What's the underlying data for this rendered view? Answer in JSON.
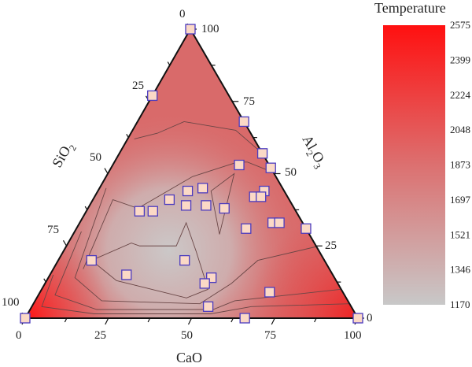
{
  "chart_data": {
    "type": "ternary-contour",
    "axes": {
      "bottom": {
        "label": "CaO",
        "ticks": [
          "0",
          "25",
          "50",
          "75",
          "100"
        ]
      },
      "left": {
        "label": "SiO2",
        "label_main": "SiO",
        "label_sub": "2",
        "ticks": [
          "0",
          "25",
          "50",
          "75",
          "100"
        ]
      },
      "right": {
        "label": "Al2O3",
        "label_parts": [
          "Al",
          "2",
          "O",
          "3"
        ],
        "ticks": [
          "0",
          "25",
          "50",
          "75",
          "100"
        ]
      }
    },
    "colorbar": {
      "title": "Temperature",
      "min": 1170,
      "max": 2575,
      "ticks": [
        "2575",
        "2399",
        "2224",
        "2048",
        "1873",
        "1697",
        "1521",
        "1346",
        "1170"
      ],
      "color_high": "#ff1010",
      "color_low": "#c8c8c8"
    },
    "point_style": {
      "fill": "#fbd9c6",
      "stroke": "#4b3bbf"
    },
    "points_fields": [
      "Al2O3",
      "CaO",
      "SiO2"
    ],
    "points": [
      [
        100,
        0,
        0
      ],
      [
        77,
        0,
        23
      ],
      [
        68,
        32,
        0
      ],
      [
        53,
        38,
        9
      ],
      [
        57,
        43,
        0
      ],
      [
        52,
        48,
        0
      ],
      [
        45,
        31,
        24
      ],
      [
        44,
        27,
        29
      ],
      [
        41,
        23,
        36
      ],
      [
        39,
        29,
        32
      ],
      [
        37,
        16,
        47
      ],
      [
        37,
        20,
        43
      ],
      [
        39,
        35,
        26
      ],
      [
        38,
        41,
        21
      ],
      [
        42,
        48,
        10
      ],
      [
        44,
        50,
        6
      ],
      [
        42,
        50,
        8
      ],
      [
        33,
        58,
        9
      ],
      [
        33,
        60,
        7
      ],
      [
        31,
        51,
        18
      ],
      [
        31,
        69,
        0
      ],
      [
        20,
        10,
        70
      ],
      [
        20,
        38,
        42
      ],
      [
        15,
        23,
        62
      ],
      [
        14,
        49,
        37
      ],
      [
        12,
        48,
        40
      ],
      [
        9,
        69,
        22
      ],
      [
        4,
        53,
        43
      ],
      [
        0,
        0,
        100
      ],
      [
        0,
        66,
        34
      ],
      [
        0,
        100,
        0
      ]
    ],
    "contours": [
      {
        "closed": true,
        "points": [
          [
            20,
            10
          ],
          [
            26,
            19
          ],
          [
            25,
            22
          ],
          [
            25,
            33
          ],
          [
            33,
            32
          ],
          [
            23,
            40
          ],
          [
            10,
            50
          ],
          [
            7,
            45
          ],
          [
            13,
            21
          ]
        ]
      },
      {
        "closed": true,
        "points": [
          [
            50,
            38
          ],
          [
            44,
            34
          ],
          [
            29,
            44
          ]
        ]
      },
      {
        "closed": false,
        "points": [
          [
            17,
            9
          ],
          [
            41,
            6
          ],
          [
            38,
            15
          ],
          [
            44,
            21
          ],
          [
            49,
            26
          ],
          [
            54,
            37
          ],
          [
            54,
            40
          ],
          [
            51,
            48
          ]
        ]
      },
      {
        "closed": false,
        "points": [
          [
            62,
            2
          ],
          [
            64,
            8
          ],
          [
            68,
            14
          ],
          [
            65,
            31
          ],
          [
            57,
            43
          ]
        ]
      },
      {
        "closed": false,
        "points": [
          [
            45,
            2
          ],
          [
            14,
            8
          ],
          [
            6,
            20
          ],
          [
            5,
            50
          ],
          [
            12,
            56
          ],
          [
            20,
            60
          ],
          [
            25,
            76
          ]
        ]
      },
      {
        "closed": false,
        "points": [
          [
            30,
            2
          ],
          [
            8,
            5
          ],
          [
            3,
            20
          ],
          [
            3,
            55
          ],
          [
            6,
            60
          ],
          [
            10,
            90
          ]
        ]
      },
      {
        "closed": false,
        "points": [
          [
            15,
            1
          ],
          [
            4,
            3
          ],
          [
            1.5,
            20
          ],
          [
            1.5,
            55
          ],
          [
            4,
            66
          ],
          [
            5,
            95
          ]
        ]
      }
    ]
  }
}
